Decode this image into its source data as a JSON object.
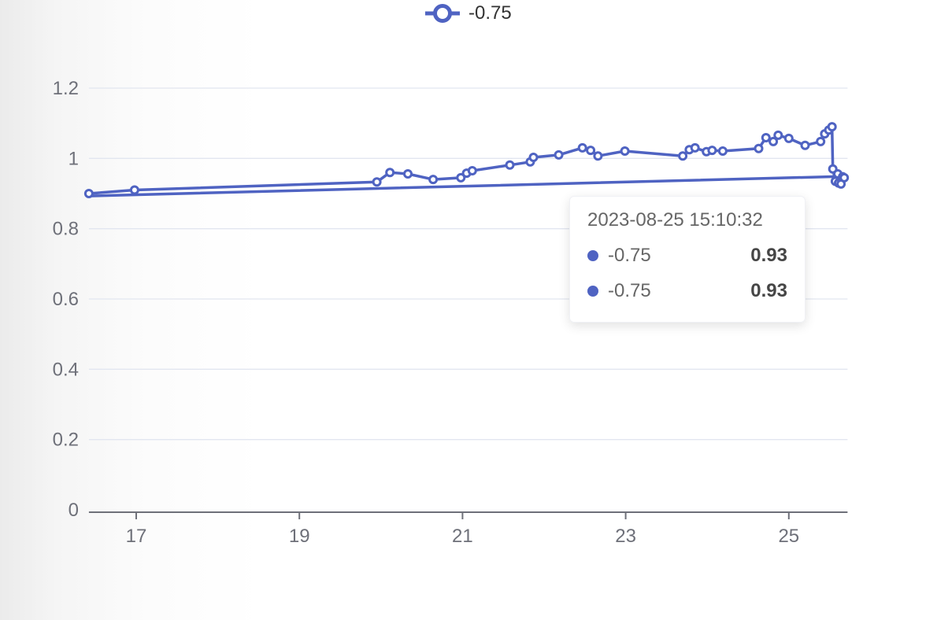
{
  "colors": {
    "accent": "#4f63c2",
    "grid": "#e2e6f0",
    "axis": "#6e7079",
    "tick_label": "#6e7079",
    "legend_text": "#333333"
  },
  "legend": {
    "label": "-0.75"
  },
  "tooltip": {
    "title": "2023-08-25 15:10:32",
    "rows": [
      {
        "label": "-0.75",
        "value": "0.93"
      },
      {
        "label": "-0.75",
        "value": "0.93"
      }
    ]
  },
  "chart_data": {
    "type": "line",
    "title": "",
    "xlabel": "",
    "ylabel": "",
    "xlim": [
      16.42,
      25.72
    ],
    "ylim": [
      0,
      1.2
    ],
    "xticks": [
      17,
      19,
      21,
      23,
      25
    ],
    "yticks": [
      0,
      0.2,
      0.4,
      0.6,
      0.8,
      1,
      1.2
    ],
    "grid": true,
    "legend_position": "top-center",
    "series": [
      {
        "name": "-0.75",
        "color": "#4f63c2",
        "marker": "ring",
        "points": [
          [
            16.42,
            0.9
          ],
          [
            16.98,
            0.91
          ],
          [
            19.95,
            0.933
          ],
          [
            20.11,
            0.96
          ],
          [
            20.33,
            0.956
          ],
          [
            20.64,
            0.94
          ],
          [
            20.98,
            0.945
          ],
          [
            21.05,
            0.958
          ],
          [
            21.12,
            0.965
          ],
          [
            21.58,
            0.981
          ],
          [
            21.83,
            0.99
          ],
          [
            21.87,
            1.003
          ],
          [
            22.18,
            1.01
          ],
          [
            22.47,
            1.03
          ],
          [
            22.57,
            1.023
          ],
          [
            22.66,
            1.007
          ],
          [
            22.99,
            1.021
          ],
          [
            23.7,
            1.007
          ],
          [
            23.78,
            1.025
          ],
          [
            23.85,
            1.03
          ],
          [
            23.99,
            1.019
          ],
          [
            24.06,
            1.023
          ],
          [
            24.19,
            1.021
          ],
          [
            24.63,
            1.028
          ],
          [
            24.72,
            1.059
          ],
          [
            24.81,
            1.048
          ],
          [
            24.87,
            1.066
          ],
          [
            25.0,
            1.057
          ],
          [
            25.2,
            1.037
          ],
          [
            25.39,
            1.048
          ],
          [
            25.44,
            1.07
          ],
          [
            25.49,
            1.081
          ],
          [
            25.53,
            1.09
          ],
          [
            25.54,
            0.97
          ],
          [
            25.57,
            0.935
          ],
          [
            25.6,
            0.956
          ],
          [
            25.61,
            0.93
          ],
          [
            25.64,
            0.927
          ],
          [
            25.66,
            0.948
          ],
          [
            25.68,
            0.945
          ]
        ]
      },
      {
        "name": "-0.75",
        "color": "#4f63c2",
        "marker": "none",
        "points": [
          [
            16.42,
            0.893
          ],
          [
            25.68,
            0.949
          ]
        ]
      }
    ]
  }
}
